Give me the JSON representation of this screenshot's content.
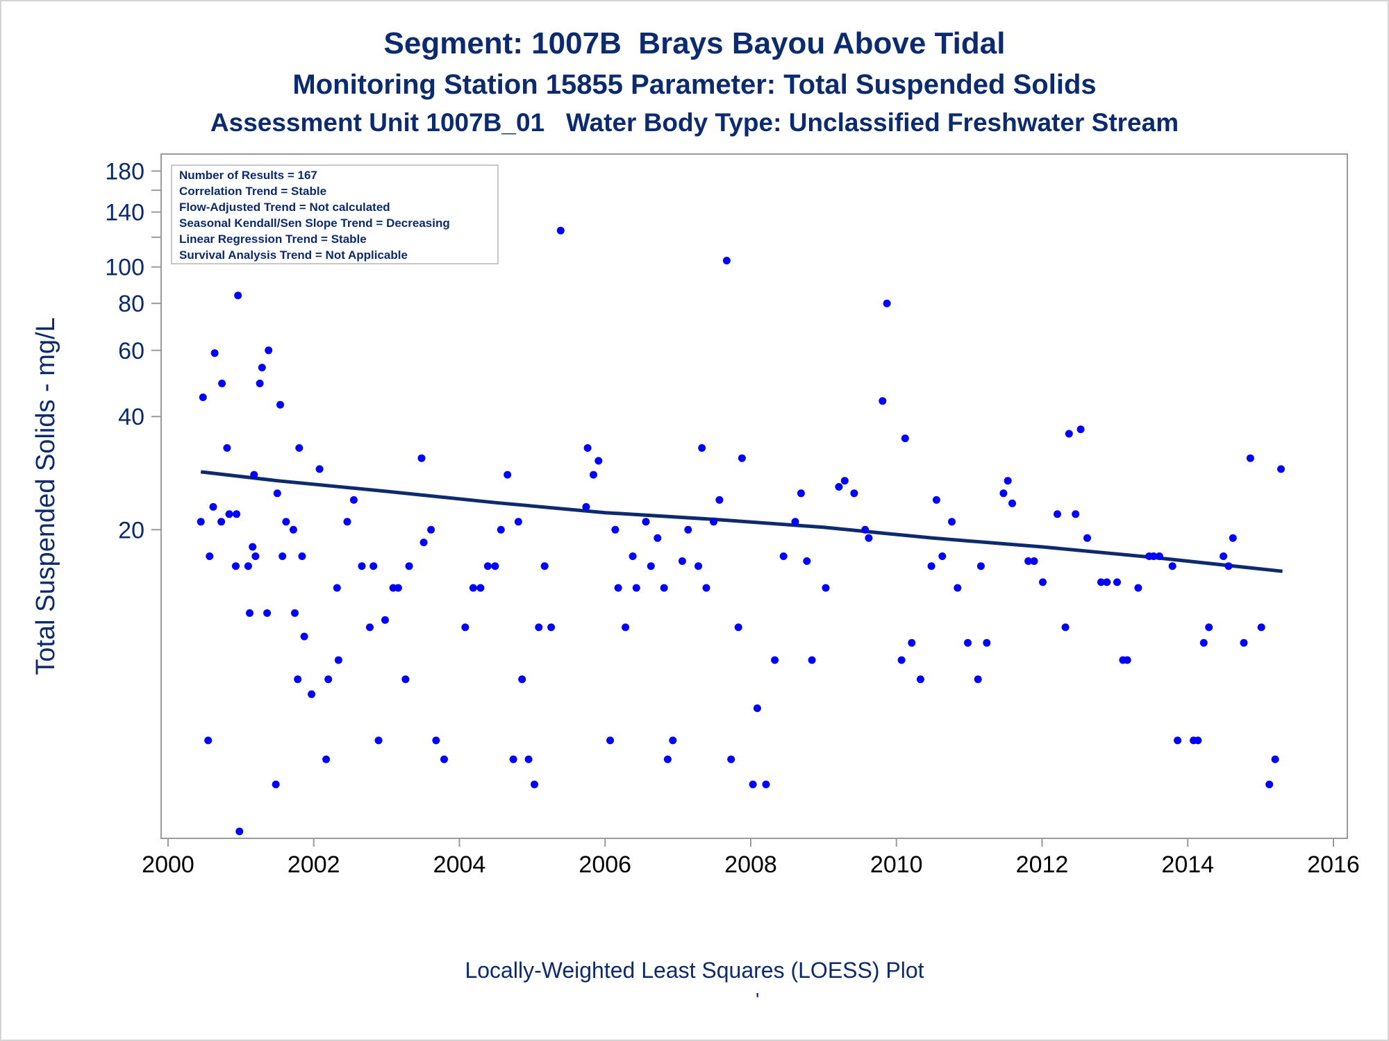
{
  "titles": {
    "line1": "Segment: 1007B  Brays Bayou Above Tidal",
    "line2": "Monitoring Station 15855 Parameter: Total Suspended Solids",
    "line3": "Assessment Unit 1007B_01   Water Body Type: Unclassified Freshwater Stream"
  },
  "caption": "Locally-Weighted Least Squares (LOESS) Plot",
  "caption_mark": "'",
  "stats_box": [
    "Number of Results = 167",
    "Correlation Trend = Stable",
    "Flow-Adjusted Trend = Not calculated",
    "Seasonal Kendall/Sen Slope Trend = Decreasing",
    "Linear Regression Trend = Stable",
    "Survival Analysis Trend = Not Applicable"
  ],
  "colors": {
    "title": "#0c2a6e",
    "points": "#0000ff",
    "loess_line": "#0c2a6e",
    "axis": "#9a9a9a"
  },
  "chart_data": {
    "type": "scatter",
    "title": "Segment: 1007B  Brays Bayou Above Tidal",
    "xlabel": "",
    "ylabel": "Total Suspended Solids - mg/L",
    "y_scale": "log",
    "xlim": [
      2000,
      2016
    ],
    "ylim": [
      3.15,
      185
    ],
    "x_ticks": [
      2000,
      2002,
      2004,
      2006,
      2008,
      2010,
      2012,
      2014,
      2016
    ],
    "y_ticks": [
      20,
      40,
      60,
      80,
      100,
      140,
      180
    ],
    "y_minor_ticks": [
      160,
      120
    ],
    "grid": false,
    "legend": "none",
    "loess_line": {
      "x": [
        2000.45,
        2001.5,
        2003,
        2004.5,
        2006,
        2007.5,
        2009,
        2010.5,
        2012,
        2013.5,
        2015.3
      ],
      "y": [
        28.5,
        27.0,
        25.3,
        23.6,
        22.2,
        21.3,
        20.3,
        19.0,
        18.0,
        16.9,
        15.5
      ]
    },
    "points": {
      "x": [
        2000.45,
        2000.48,
        2000.55,
        2000.57,
        2000.62,
        2000.64,
        2000.73,
        2000.74,
        2000.81,
        2000.84,
        2000.93,
        2000.94,
        2000.96,
        2000.98,
        2001.08,
        2001.1,
        2001.12,
        2001.16,
        2001.18,
        2001.2,
        2001.26,
        2001.29,
        2001.36,
        2001.38,
        2001.48,
        2001.5,
        2001.54,
        2001.57,
        2001.62,
        2001.72,
        2001.74,
        2001.78,
        2001.8,
        2001.84,
        2001.87,
        2001.97,
        2002.08,
        2002.17,
        2002.2,
        2002.32,
        2002.34,
        2002.46,
        2002.55,
        2002.66,
        2002.77,
        2002.82,
        2002.89,
        2002.98,
        2003.09,
        2003.16,
        2003.26,
        2003.31,
        2003.48,
        2003.51,
        2003.61,
        2003.68,
        2003.79,
        2004.08,
        2004.13,
        2004.19,
        2004.29,
        2004.39,
        2004.49,
        2004.57,
        2004.66,
        2004.74,
        2004.81,
        2004.86,
        2004.95,
        2005.03,
        2005.09,
        2005.17,
        2005.26,
        2005.39,
        2005.74,
        2005.76,
        2005.84,
        2005.91,
        2006.07,
        2006.14,
        2006.18,
        2006.28,
        2006.38,
        2006.43,
        2006.56,
        2006.63,
        2006.72,
        2006.81,
        2006.86,
        2006.93,
        2007.06,
        2007.14,
        2007.28,
        2007.33,
        2007.39,
        2007.49,
        2007.57,
        2007.67,
        2007.73,
        2007.83,
        2007.88,
        2008.03,
        2008.09,
        2008.21,
        2008.33,
        2008.45,
        2008.61,
        2008.69,
        2008.77,
        2008.84,
        2009.03,
        2009.21,
        2009.29,
        2009.42,
        2009.57,
        2009.62,
        2009.81,
        2009.87,
        2010.07,
        2010.12,
        2010.21,
        2010.33,
        2010.48,
        2010.55,
        2010.63,
        2010.76,
        2010.84,
        2010.98,
        2011.12,
        2011.16,
        2011.24,
        2011.47,
        2011.53,
        2011.59,
        2011.81,
        2011.89,
        2012.01,
        2012.21,
        2012.32,
        2012.37,
        2012.46,
        2012.53,
        2012.62,
        2012.81,
        2012.89,
        2013.03,
        2013.11,
        2013.17,
        2013.32,
        2013.47,
        2013.53,
        2013.61,
        2013.79,
        2013.86,
        2014.08,
        2014.14,
        2014.22,
        2014.29,
        2014.49,
        2014.56,
        2014.62,
        2014.77,
        2014.86,
        2015.01,
        2015.12,
        2015.2,
        2015.28
      ],
      "y": [
        21,
        45,
        5.5,
        17,
        23,
        59,
        21,
        49,
        33,
        22,
        16,
        22,
        84,
        3.15,
        178,
        16,
        12,
        18,
        28,
        17,
        49,
        54,
        12,
        60,
        4.2,
        25,
        43,
        17,
        21,
        20,
        12,
        8,
        33,
        17,
        10.4,
        7.3,
        29,
        4.9,
        8,
        14,
        9,
        21,
        24,
        16,
        11,
        16,
        5.5,
        11.5,
        14,
        14,
        8,
        16,
        31,
        18.5,
        20,
        5.5,
        4.9,
        11,
        104,
        14,
        14,
        16,
        16,
        20,
        28,
        4.9,
        21,
        8,
        4.9,
        4.2,
        11,
        16,
        11,
        125,
        23,
        33,
        28,
        30.5,
        5.5,
        20,
        14,
        11,
        17,
        14,
        21,
        16,
        19,
        14,
        4.9,
        5.5,
        16.5,
        20,
        16,
        33,
        14,
        21,
        24,
        104,
        4.9,
        11,
        31,
        4.2,
        6.7,
        4.2,
        9,
        17,
        21,
        25,
        16.5,
        9,
        14,
        26,
        27,
        25,
        20,
        19,
        44,
        80,
        9,
        35,
        10,
        8,
        16,
        24,
        17,
        21,
        14,
        10,
        8,
        16,
        10,
        25,
        27,
        23.5,
        16.5,
        16.5,
        14.5,
        22,
        11,
        36,
        22,
        37,
        19,
        14.5,
        14.5,
        14.5,
        9,
        9,
        14,
        17,
        17,
        17,
        16,
        5.5,
        5.5,
        5.5,
        10,
        11,
        17,
        16,
        19,
        10,
        31,
        11,
        4.2,
        4.9,
        29
      ]
    }
  }
}
